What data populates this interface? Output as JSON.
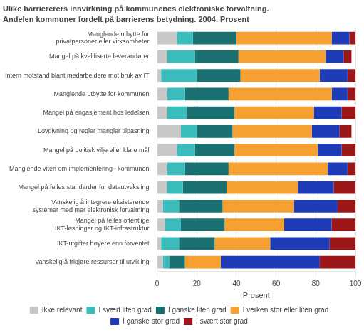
{
  "chart_data": {
    "type": "bar",
    "title": "Ulike barriererers innvirkning på kommunenes elektroniske forvaltning.",
    "subtitle": "Andelen kommuner fordelt på barrierens betydning. 2004. Prosent",
    "orientation": "horizontal",
    "stacked": true,
    "categories": [
      "Manglende utbytte for\nprivatpersoner eller virksomheter",
      "Mangel på kvalifiserte leverandører",
      "Intern motstand blant medarbeidere mot bruk av IT",
      "Manglende utbytte for kommunen",
      "Mangel på engasjement hos ledelsen",
      "Lovgivning og regler mangler tilpasning",
      "Mangel på politisk vilje eller klare mål",
      "Manglende viten om implementering i kommunen",
      "Mangel på felles standarder for datautveksling",
      "Vanskelig å integrere eksisterende\nsystemer med mer elektronisk forvaltning",
      "Mangel på felles offentlige\nIKT-løsninger og IKT-infrastruktur",
      "IKT-utgifter høyere enn forventet",
      "Vanskelig å frigjøre ressurser til utvikling"
    ],
    "series": [
      {
        "name": "Ikke relevant",
        "color": "#c8c8c8",
        "values": [
          10,
          5,
          2,
          5,
          5,
          12,
          10,
          5,
          5,
          3,
          4,
          2,
          3
        ]
      },
      {
        "name": "I svært liten grad",
        "color": "#3bbcbc",
        "values": [
          8,
          14,
          18,
          9,
          10,
          8,
          9,
          9,
          8,
          8,
          8,
          9,
          3
        ]
      },
      {
        "name": "I ganske liten grad",
        "color": "#1a7070",
        "values": [
          22,
          22,
          22,
          22,
          24,
          18,
          20,
          22,
          22,
          22,
          22,
          18,
          8
        ]
      },
      {
        "name": "I verken stor eller liten grad",
        "color": "#f5a030",
        "values": [
          48,
          44,
          40,
          52,
          40,
          40,
          42,
          50,
          36,
          36,
          30,
          28,
          18
        ]
      },
      {
        "name": "I ganske stor grad",
        "color": "#1e3cb8",
        "values": [
          9,
          9,
          14,
          8,
          14,
          14,
          12,
          10,
          18,
          22,
          24,
          30,
          50
        ]
      },
      {
        "name": "I svært stor grad",
        "color": "#9c1818",
        "values": [
          3,
          4,
          4,
          4,
          7,
          6,
          7,
          4,
          11,
          9,
          12,
          13,
          18
        ]
      }
    ],
    "xlabel": "Prosent",
    "xlim": [
      0,
      100
    ],
    "xticks": [
      0,
      20,
      40,
      60,
      80,
      100
    ],
    "grid": true,
    "legend": "bottom"
  }
}
